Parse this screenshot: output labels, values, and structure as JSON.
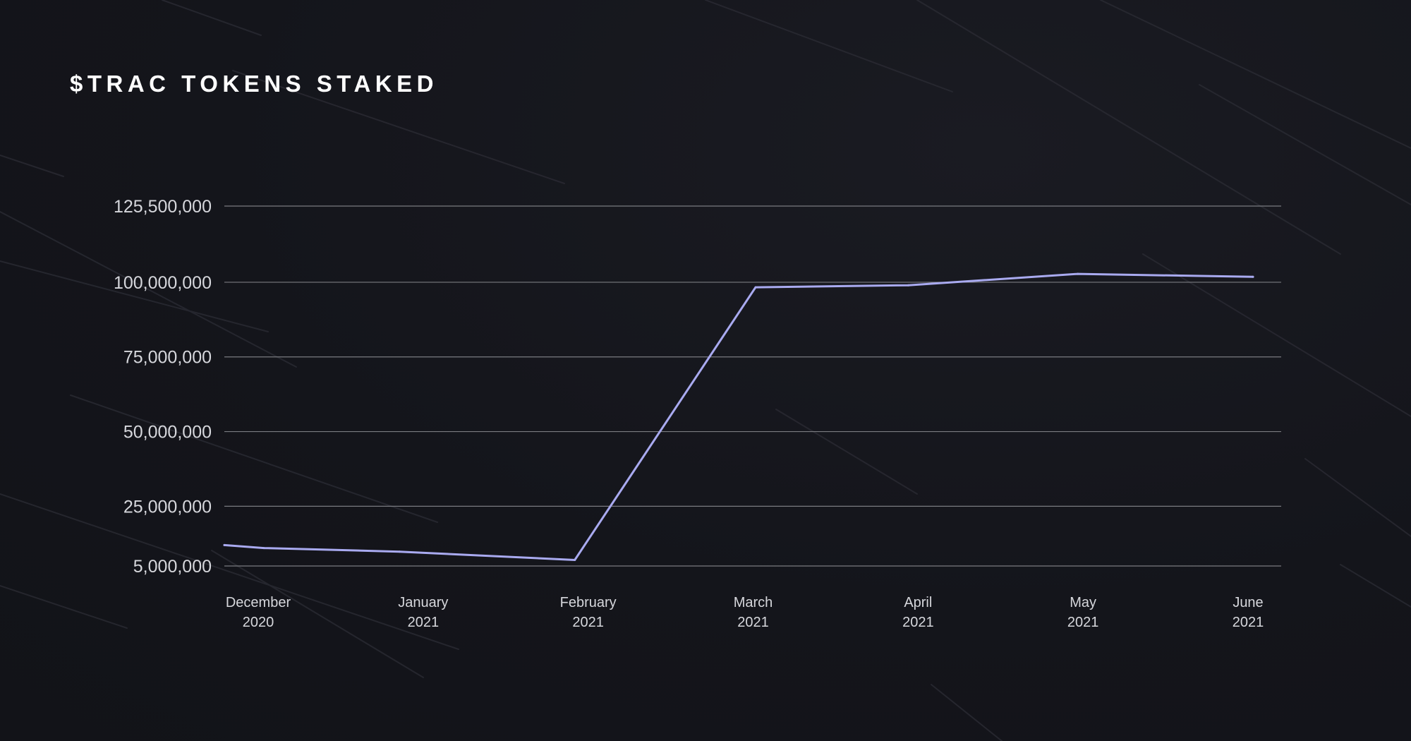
{
  "page": {
    "title": "$TRAC TOKENS STAKED"
  },
  "colors": {
    "background": "#14151b",
    "line": "#a9aaf0",
    "grid": "#7a7b80",
    "text": "#d6d7dc"
  },
  "chart_data": {
    "type": "line",
    "title": "$TRAC TOKENS STAKED",
    "xlabel": "",
    "ylabel": "",
    "grid": true,
    "legend": "none",
    "y_ticks": [
      {
        "value": 5000000,
        "label": "5,000,000"
      },
      {
        "value": 25000000,
        "label": "25,000,000"
      },
      {
        "value": 50000000,
        "label": "50,000,000"
      },
      {
        "value": 75000000,
        "label": "75,000,000"
      },
      {
        "value": 100000000,
        "label": "100,000,000"
      },
      {
        "value": 125500000,
        "label": "125,500,000"
      }
    ],
    "ylim": [
      5000000,
      125500000
    ],
    "x_ticks": [
      {
        "month": "December",
        "year": "2020"
      },
      {
        "month": "January",
        "year": "2021"
      },
      {
        "month": "February",
        "year": "2021"
      },
      {
        "month": "March",
        "year": "2021"
      },
      {
        "month": "April",
        "year": "2021"
      },
      {
        "month": "May",
        "year": "2021"
      },
      {
        "month": "June",
        "year": "2021"
      }
    ],
    "series": [
      {
        "points": [
          {
            "x": "2020-12-01",
            "y": 12000000
          },
          {
            "x": "2020-12-08",
            "y": 11000000
          },
          {
            "x": "2021-01-01",
            "y": 9800000
          },
          {
            "x": "2021-02-01",
            "y": 7000000
          },
          {
            "x": "2021-03-05",
            "y": 98300000
          },
          {
            "x": "2021-04-01",
            "y": 99000000
          },
          {
            "x": "2021-05-01",
            "y": 102800000
          },
          {
            "x": "2021-06-01",
            "y": 101800000
          }
        ]
      }
    ]
  }
}
